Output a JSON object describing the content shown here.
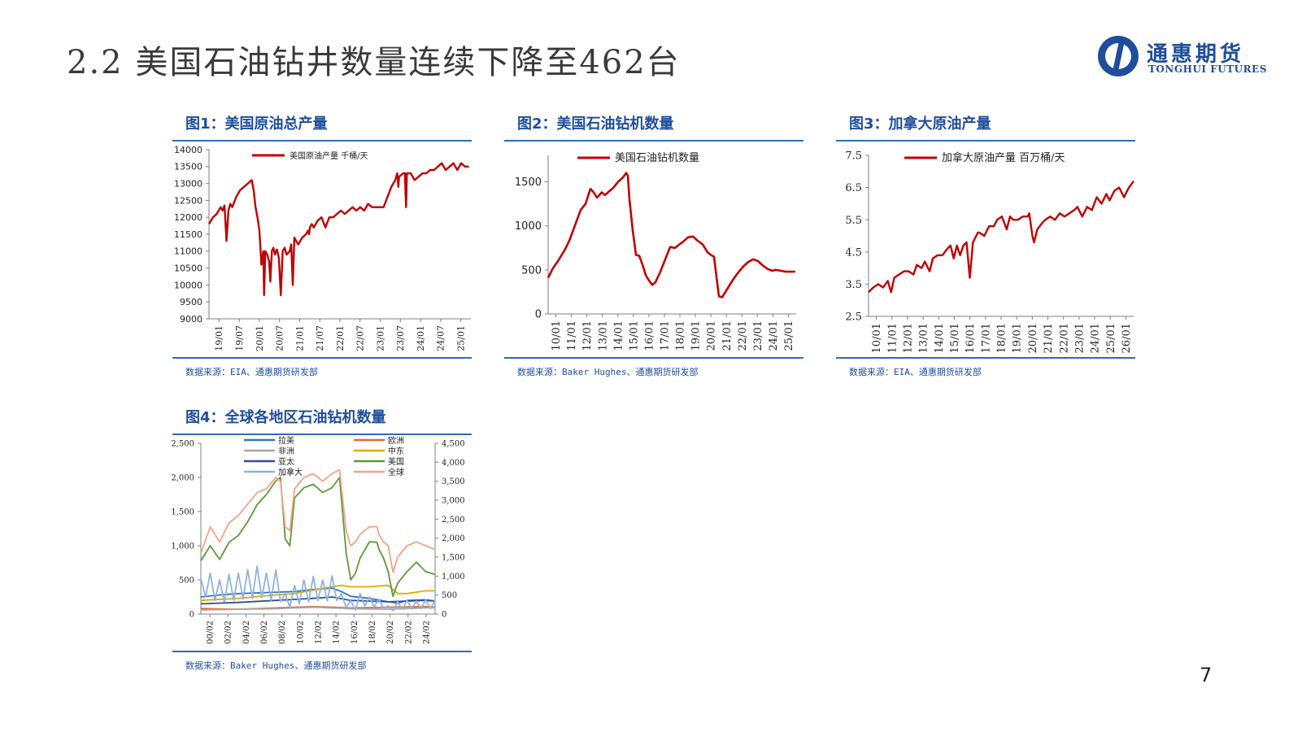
{
  "slide": {
    "title": "2.2 美国石油钻井数量连续下降至462台",
    "page_number": "7"
  },
  "logo": {
    "cn": "通惠期货",
    "en": "TONGHUI FUTURES"
  },
  "colors": {
    "accent": "#1f4e9a",
    "rule": "#2e6db4",
    "series_red": "#c00000"
  },
  "panels": [
    {
      "title": "图1：美国原油总产量",
      "source": "数据来源：EIA、通惠期货研发部"
    },
    {
      "title": "图2：美国石油钻机数量",
      "source": "数据来源：Baker Hughes、通惠期货研发部"
    },
    {
      "title": "图3：加拿大原油产量",
      "source": "数据来源：EIA、通惠期货研发部"
    },
    {
      "title": "图4：全球各地区石油钻机数量",
      "source": "数据来源：Baker Hughes、通惠期货研发部"
    }
  ],
  "chart_data": [
    {
      "type": "line",
      "xticks": [
        "19/01",
        "19/07",
        "20/01",
        "20/07",
        "21/01",
        "21/07",
        "22/01",
        "22/07",
        "23/01",
        "23/07",
        "24/01",
        "24/07",
        "25/01"
      ],
      "yticks": [
        9000,
        9500,
        10000,
        10500,
        11000,
        11500,
        12000,
        12500,
        13000,
        13500,
        14000
      ],
      "ylim": [
        9000,
        14000
      ],
      "xlim": [
        2019.0,
        2025.75
      ],
      "grid": false,
      "legend_position": "top",
      "series": [
        {
          "name": "美国原油产量 千桶/天",
          "color": "#c00000",
          "x": [
            2019.0,
            2019.1,
            2019.2,
            2019.3,
            2019.35,
            2019.4,
            2019.45,
            2019.5,
            2019.55,
            2019.6,
            2019.7,
            2019.8,
            2019.9,
            2020.0,
            2020.1,
            2020.15,
            2020.2,
            2020.25,
            2020.3,
            2020.35,
            2020.4,
            2020.42,
            2020.45,
            2020.5,
            2020.55,
            2020.58,
            2020.62,
            2020.66,
            2020.7,
            2020.75,
            2020.8,
            2020.85,
            2020.9,
            2020.95,
            2021.0,
            2021.08,
            2021.12,
            2021.16,
            2021.2,
            2021.3,
            2021.4,
            2021.5,
            2021.55,
            2021.58,
            2021.6,
            2021.65,
            2021.7,
            2021.8,
            2021.9,
            2022.0,
            2022.1,
            2022.2,
            2022.3,
            2022.4,
            2022.5,
            2022.6,
            2022.7,
            2022.8,
            2022.9,
            2023.0,
            2023.1,
            2023.2,
            2023.3,
            2023.4,
            2023.5,
            2023.6,
            2023.7,
            2023.75,
            2023.8,
            2023.85,
            2023.88,
            2023.9,
            2024.0,
            2024.05,
            2024.08,
            2024.1,
            2024.2,
            2024.3,
            2024.4,
            2024.5,
            2024.6,
            2024.7,
            2024.8,
            2024.9,
            2025.0,
            2025.1,
            2025.2,
            2025.3,
            2025.4,
            2025.5,
            2025.6,
            2025.7
          ],
          "values": [
            11800,
            12000,
            12100,
            12300,
            12200,
            12350,
            11300,
            12200,
            12400,
            12300,
            12600,
            12800,
            12900,
            13000,
            13100,
            12800,
            12300,
            12000,
            11600,
            10600,
            11000,
            9700,
            11000,
            10900,
            10700,
            10100,
            11000,
            11100,
            10900,
            11050,
            10800,
            9700,
            11000,
            11100,
            10900,
            11000,
            11200,
            10000,
            11400,
            11200,
            11400,
            11500,
            11600,
            11500,
            11700,
            11800,
            11700,
            11900,
            12000,
            11700,
            12000,
            12000,
            12100,
            12200,
            12100,
            12200,
            12300,
            12200,
            12300,
            12200,
            12400,
            12300,
            12300,
            12300,
            12300,
            12600,
            12900,
            13000,
            13100,
            13300,
            12900,
            13200,
            13300,
            13300,
            12300,
            13300,
            13300,
            13100,
            13200,
            13300,
            13300,
            13400,
            13400,
            13500,
            13600,
            13400,
            13500,
            13600,
            13400,
            13600,
            13500,
            13500
          ]
        }
      ]
    },
    {
      "type": "line",
      "xticks": [
        "10/01",
        "11/01",
        "12/01",
        "13/01",
        "14/01",
        "15/01",
        "16/01",
        "17/01",
        "18/01",
        "19/01",
        "20/01",
        "21/01",
        "22/01",
        "23/01",
        "24/01",
        "25/01"
      ],
      "yticks": [
        0,
        500,
        1000,
        1500
      ],
      "ylim": [
        0,
        1800
      ],
      "xlim": [
        2010.0,
        2025.25
      ],
      "grid": false,
      "legend_position": "top",
      "series": [
        {
          "name": "美国石油钻机数量",
          "color": "#c00000",
          "x": [
            2010.0,
            2010.3,
            2010.6,
            2011.0,
            2011.3,
            2011.6,
            2012.0,
            2012.3,
            2012.6,
            2012.8,
            2013.0,
            2013.3,
            2013.5,
            2013.8,
            2014.0,
            2014.3,
            2014.6,
            2014.8,
            2014.9,
            2015.0,
            2015.2,
            2015.4,
            2015.6,
            2015.8,
            2016.0,
            2016.2,
            2016.4,
            2016.6,
            2016.9,
            2017.2,
            2017.5,
            2017.8,
            2018.0,
            2018.3,
            2018.6,
            2018.9,
            2019.2,
            2019.5,
            2019.8,
            2020.0,
            2020.2,
            2020.35,
            2020.5,
            2020.7,
            2021.0,
            2021.3,
            2021.6,
            2022.0,
            2022.3,
            2022.6,
            2022.9,
            2023.2,
            2023.5,
            2023.8,
            2024.0,
            2024.3,
            2024.6,
            2024.9,
            2025.2
          ],
          "values": [
            410,
            520,
            600,
            720,
            830,
            980,
            1180,
            1250,
            1420,
            1380,
            1320,
            1380,
            1350,
            1400,
            1430,
            1500,
            1550,
            1600,
            1570,
            1300,
            950,
            670,
            660,
            560,
            440,
            380,
            330,
            360,
            480,
            620,
            760,
            750,
            780,
            820,
            870,
            880,
            830,
            790,
            700,
            670,
            650,
            420,
            200,
            190,
            280,
            370,
            450,
            540,
            590,
            620,
            600,
            550,
            510,
            490,
            500,
            490,
            480,
            480,
            480
          ]
        }
      ]
    },
    {
      "type": "line",
      "xticks": [
        "10/01",
        "11/01",
        "12/01",
        "13/01",
        "14/01",
        "15/01",
        "16/01",
        "17/01",
        "18/01",
        "19/01",
        "20/01",
        "21/01",
        "22/01",
        "23/01",
        "24/01",
        "25/01",
        "26/01"
      ],
      "yticks": [
        2.5,
        3.5,
        4.5,
        5.5,
        6.5,
        7.5
      ],
      "ylim": [
        2.5,
        7.5
      ],
      "xlim": [
        2010.0,
        2026.5
      ],
      "grid": false,
      "legend_position": "top",
      "series": [
        {
          "name": "加拿大原油产量 百万桶/天",
          "color": "#c00000",
          "x": [
            2010.0,
            2010.3,
            2010.6,
            2010.9,
            2011.2,
            2011.4,
            2011.6,
            2011.9,
            2012.2,
            2012.5,
            2012.8,
            2013.0,
            2013.3,
            2013.5,
            2013.8,
            2014.0,
            2014.3,
            2014.6,
            2014.9,
            2015.1,
            2015.3,
            2015.5,
            2015.7,
            2015.9,
            2016.1,
            2016.3,
            2016.5,
            2016.7,
            2016.8,
            2016.9,
            2017.2,
            2017.5,
            2017.8,
            2018.0,
            2018.3,
            2018.6,
            2018.8,
            2019.0,
            2019.3,
            2019.6,
            2019.9,
            2020.0,
            2020.2,
            2020.3,
            2020.5,
            2020.8,
            2021.0,
            2021.3,
            2021.6,
            2021.9,
            2022.2,
            2022.5,
            2022.8,
            2023.0,
            2023.3,
            2023.6,
            2023.9,
            2024.2,
            2024.5,
            2024.8,
            2025.0,
            2025.3,
            2025.6,
            2025.9,
            2026.2,
            2026.5
          ],
          "values": [
            3.25,
            3.4,
            3.5,
            3.4,
            3.6,
            3.25,
            3.7,
            3.8,
            3.9,
            3.9,
            3.8,
            4.1,
            4.0,
            4.2,
            3.9,
            4.3,
            4.4,
            4.4,
            4.6,
            4.7,
            4.3,
            4.7,
            4.4,
            4.7,
            4.8,
            3.7,
            4.8,
            5.0,
            5.1,
            5.1,
            5.0,
            5.3,
            5.3,
            5.5,
            5.6,
            5.2,
            5.6,
            5.5,
            5.5,
            5.6,
            5.6,
            5.7,
            5.0,
            4.8,
            5.2,
            5.4,
            5.5,
            5.6,
            5.5,
            5.7,
            5.6,
            5.7,
            5.8,
            5.9,
            5.6,
            5.9,
            5.8,
            6.2,
            6.0,
            6.3,
            6.1,
            6.4,
            6.5,
            6.2,
            6.5,
            6.7
          ]
        }
      ]
    },
    {
      "type": "line",
      "xticks": [
        "00/02",
        "02/02",
        "04/02",
        "06/02",
        "08/02",
        "10/02",
        "12/02",
        "14/02",
        "16/02",
        "18/02",
        "20/02",
        "22/02",
        "24/02"
      ],
      "yticks_left": [
        0,
        500,
        1000,
        1500,
        2000,
        2500
      ],
      "yticks_right": [
        0,
        500,
        1000,
        1500,
        2000,
        2500,
        3000,
        3500,
        4000,
        4500
      ],
      "ylim_left": [
        0,
        2500
      ],
      "ylim_right": [
        0,
        4500
      ],
      "xlim": [
        2000.0,
        2025.0
      ],
      "grid": false,
      "legend_position": "top",
      "series": [
        {
          "name": "拉美",
          "color": "#2e75b6",
          "axis": "left",
          "x": [
            2000,
            2002,
            2004,
            2006,
            2008,
            2010,
            2012,
            2014,
            2015,
            2016,
            2018,
            2020,
            2021,
            2022,
            2024,
            2025
          ],
          "values": [
            250,
            280,
            300,
            310,
            320,
            330,
            360,
            380,
            330,
            260,
            230,
            180,
            160,
            200,
            210,
            190
          ]
        },
        {
          "name": "欧洲",
          "color": "#e06a3a",
          "axis": "left",
          "x": [
            2000,
            2004,
            2008,
            2012,
            2016,
            2020,
            2024,
            2025
          ],
          "values": [
            80,
            70,
            90,
            110,
            90,
            100,
            110,
            100
          ]
        },
        {
          "name": "非洲",
          "color": "#a5a5a5",
          "axis": "left",
          "x": [
            2000,
            2004,
            2008,
            2012,
            2016,
            2020,
            2024,
            2025
          ],
          "values": [
            60,
            70,
            80,
            100,
            80,
            70,
            90,
            90
          ]
        },
        {
          "name": "中东",
          "color": "#e0ac00",
          "axis": "left",
          "x": [
            2000,
            2004,
            2008,
            2010,
            2012,
            2014,
            2015,
            2016,
            2018,
            2020,
            2021,
            2022,
            2024,
            2025
          ],
          "values": [
            200,
            230,
            280,
            300,
            350,
            400,
            420,
            400,
            400,
            420,
            300,
            300,
            340,
            340
          ]
        },
        {
          "name": "亚太",
          "color": "#2f4f9a",
          "axis": "left",
          "x": [
            2000,
            2004,
            2008,
            2012,
            2014,
            2016,
            2020,
            2024,
            2025
          ],
          "values": [
            150,
            170,
            200,
            230,
            250,
            200,
            180,
            200,
            190
          ]
        },
        {
          "name": "美国",
          "color": "#5b9a35",
          "axis": "left",
          "x": [
            2000,
            2001,
            2002,
            2003,
            2004,
            2005,
            2006,
            2007,
            2008,
            2008.5,
            2009,
            2009.5,
            2010,
            2011,
            2012,
            2013,
            2014,
            2014.8,
            2015.5,
            2016,
            2016.5,
            2017,
            2018,
            2018.8,
            2019,
            2019.5,
            2020,
            2020.5,
            2021,
            2022,
            2023,
            2024,
            2025
          ],
          "values": [
            780,
            1000,
            800,
            1050,
            1150,
            1350,
            1600,
            1750,
            1950,
            2000,
            1100,
            1000,
            1700,
            1850,
            1900,
            1780,
            1850,
            2000,
            900,
            500,
            600,
            820,
            1060,
            1050,
            950,
            820,
            620,
            260,
            450,
            620,
            760,
            620,
            580
          ]
        },
        {
          "name": "加拿大",
          "color": "#8fb3e0",
          "axis": "left",
          "x": [
            2000,
            2000.5,
            2001,
            2001.5,
            2002,
            2002.5,
            2003,
            2003.5,
            2004,
            2004.5,
            2005,
            2005.5,
            2006,
            2006.5,
            2007,
            2007.5,
            2008,
            2008.5,
            2009,
            2009.5,
            2010,
            2010.5,
            2011,
            2011.5,
            2012,
            2012.5,
            2013,
            2013.5,
            2014,
            2014.5,
            2015,
            2015.5,
            2016,
            2016.5,
            2017,
            2017.5,
            2018,
            2018.5,
            2019,
            2019.5,
            2020,
            2020.5,
            2021,
            2021.5,
            2022,
            2022.5,
            2023,
            2023.5,
            2024,
            2024.5,
            2025
          ],
          "values": [
            520,
            250,
            600,
            200,
            500,
            180,
            580,
            200,
            600,
            220,
            650,
            230,
            700,
            240,
            600,
            200,
            650,
            180,
            300,
            100,
            420,
            150,
            500,
            180,
            550,
            200,
            500,
            190,
            560,
            200,
            300,
            90,
            200,
            60,
            300,
            120,
            250,
            100,
            220,
            80,
            120,
            50,
            180,
            70,
            200,
            80,
            190,
            80,
            210,
            80,
            200
          ]
        },
        {
          "name": "全球",
          "color": "#f2a48a",
          "axis": "right",
          "x": [
            2000,
            2001,
            2002,
            2003,
            2004,
            2005,
            2006,
            2007,
            2008,
            2008.5,
            2009,
            2009.5,
            2010,
            2011,
            2012,
            2013,
            2014,
            2014.8,
            2015.5,
            2016,
            2016.5,
            2017,
            2018,
            2018.8,
            2019,
            2019.5,
            2020,
            2020.5,
            2021,
            2022,
            2023,
            2024,
            2025
          ],
          "values": [
            1600,
            2300,
            1900,
            2400,
            2600,
            2900,
            3200,
            3300,
            3600,
            3500,
            2300,
            2200,
            3300,
            3600,
            3700,
            3500,
            3700,
            3800,
            2200,
            1800,
            1900,
            2100,
            2300,
            2300,
            2100,
            1900,
            1800,
            1100,
            1500,
            1800,
            1900,
            1800,
            1700
          ]
        }
      ]
    }
  ]
}
